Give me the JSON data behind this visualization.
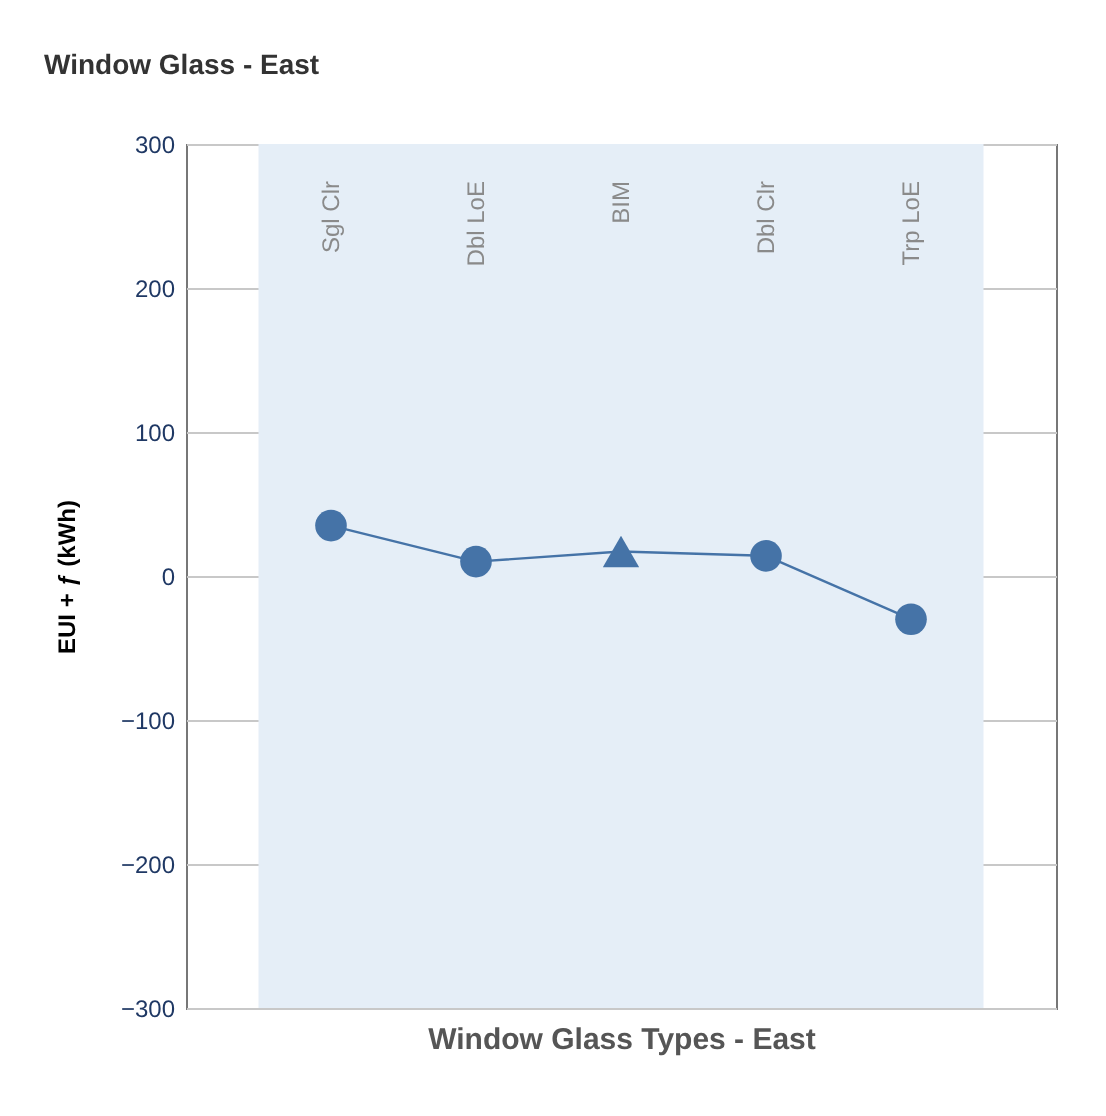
{
  "chart_data": {
    "type": "line",
    "title": "Window Glass - East",
    "xlabel": "Window Glass Types - East",
    "ylabel": "EUI + ƒ (kWh)",
    "categories": [
      "Sgl Clr",
      "Dbl LoE",
      "BIM",
      "Dbl Clr",
      "Trp LoE"
    ],
    "series": [
      {
        "color": "#4573a7",
        "marker": "none",
        "values": [
          35,
          10,
          17,
          14,
          -30
        ]
      },
      {
        "type": "scatter",
        "color": "#4573a7",
        "marker": "circle",
        "values": [
          35,
          10,
          null,
          14,
          -30
        ]
      },
      {
        "type": "scatter",
        "color": "#4573a7",
        "marker": "triangle",
        "values": [
          null,
          null,
          17,
          null,
          null
        ]
      }
    ],
    "bands": [
      {
        "axis": "x",
        "from": "Sgl Clr",
        "to": "Trp LoE",
        "color": "#e5eef7"
      }
    ],
    "ylim": [
      -300,
      300
    ],
    "yticks": [
      -300,
      -200,
      -100,
      0,
      100,
      200,
      300
    ],
    "grid": "y"
  }
}
